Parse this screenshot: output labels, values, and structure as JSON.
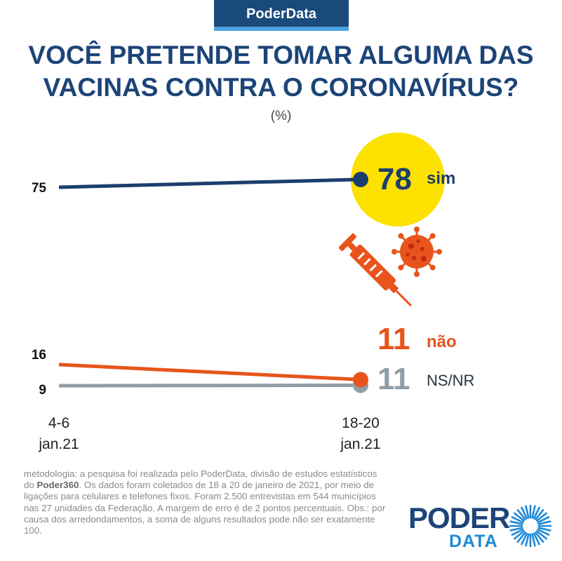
{
  "brand": {
    "tag": "PoderData"
  },
  "header": {
    "title_line1": "VOCÊ PRETENDE TOMAR ALGUMA DAS",
    "title_line2": "VACINAS CONTRA O CORONAVÍRUS?",
    "unit": "(%)"
  },
  "chart_data": {
    "type": "line",
    "x": [
      "4-6 jan.21",
      "18-20 jan.21"
    ],
    "x_tick_lines": [
      [
        "4-6",
        "jan.21"
      ],
      [
        "18-20",
        "jan.21"
      ]
    ],
    "series": [
      {
        "name": "sim",
        "values": [
          75,
          78
        ],
        "color": "#1c3e6e"
      },
      {
        "name": "não",
        "values": [
          16,
          11
        ],
        "color": "#e8541c"
      },
      {
        "name": "NS/NR",
        "values": [
          9,
          11
        ],
        "color": "#8e9ea8"
      }
    ],
    "highlight_color": "#fde100",
    "grid": false,
    "legend": "none"
  },
  "footer": {
    "methodology": "metodologia: a pesquisa foi realizada pelo PoderData, divisão de estudos estatísticos do Poder360. Os dados foram coletados de 18 a 20 de janeiro de 2021, por meio de ligações para celulares e telefones fixos. Foram 2.500 entrevistas em 544 municípios nas 27 unidades da Federação. A margem de erro é de 2 pontos percentuais. Obs.: por causa dos arredondamentos, a soma de alguns resultados pode não ser exatamente 100.",
    "methodology_bold": "Poder360"
  },
  "logo": {
    "word": "PODER",
    "sub": "DATA"
  },
  "icons": {
    "syringe": "syringe-icon",
    "virus": "virus-icon"
  }
}
